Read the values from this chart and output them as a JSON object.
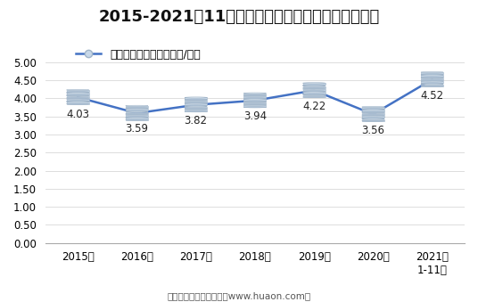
{
  "title": "2015-2021年11月大连商品交易所鸡蛋期货成交均价",
  "legend_label": "鸡蛋期货成交均价（万元/手）",
  "x_labels": [
    "2015年",
    "2016年",
    "2017年",
    "2018年",
    "2019年",
    "2020年",
    "2021年\n1-11月"
  ],
  "x_values": [
    0,
    1,
    2,
    3,
    4,
    5,
    6
  ],
  "y_values": [
    4.03,
    3.59,
    3.82,
    3.94,
    4.22,
    3.56,
    4.52
  ],
  "data_labels": [
    "4.03",
    "3.59",
    "3.82",
    "3.94",
    "4.22",
    "3.56",
    "4.52"
  ],
  "ylim": [
    0,
    5.0
  ],
  "yticks": [
    0.0,
    0.5,
    1.0,
    1.5,
    2.0,
    2.5,
    3.0,
    3.5,
    4.0,
    4.5,
    5.0
  ],
  "ytick_labels": [
    "0.00",
    "0.50",
    "1.00",
    "1.50",
    "2.00",
    "2.50",
    "3.00",
    "3.50",
    "4.00",
    "4.50",
    "5.00"
  ],
  "line_color": "#4472C4",
  "footer": "制图：华经产业研究院（www.huaon.com）",
  "background_color": "#FFFFFF",
  "title_fontsize": 13,
  "label_fontsize": 8.5,
  "tick_fontsize": 8.5,
  "legend_fontsize": 9
}
